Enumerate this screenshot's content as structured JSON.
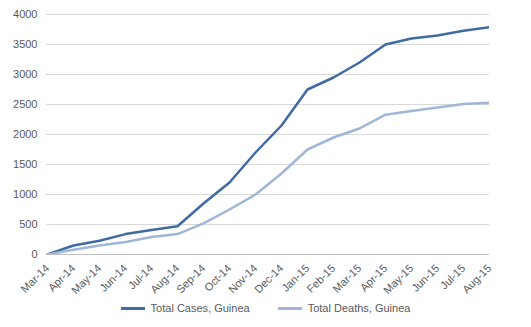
{
  "chart_data": {
    "type": "line",
    "x": [
      "Mar-14",
      "Apr-14",
      "May-14",
      "Jun-14",
      "Jul-14",
      "Aug-14",
      "Sep-14",
      "Oct-14",
      "Nov-14",
      "Dec-14",
      "Jan-15",
      "Feb-15",
      "Mar-15",
      "Apr-15",
      "May-15",
      "Jun-15",
      "Jul-15",
      "Aug-15"
    ],
    "series": [
      {
        "name": "Total Cases, Guinea",
        "color": "#3f6aa3",
        "values": [
          0,
          150,
          230,
          340,
          410,
          470,
          850,
          1200,
          1700,
          2150,
          2750,
          2950,
          3200,
          3500,
          3600,
          3650,
          3730,
          3790
        ]
      },
      {
        "name": "Total Deaths, Guinea",
        "color": "#9fb6d8",
        "values": [
          0,
          80,
          150,
          210,
          290,
          340,
          520,
          750,
          1000,
          1350,
          1750,
          1950,
          2100,
          2330,
          2390,
          2450,
          2510,
          2530
        ]
      }
    ],
    "ylim": [
      0,
      4000
    ],
    "yticks": [
      0,
      500,
      1000,
      1500,
      2000,
      2500,
      3000,
      3500,
      4000
    ],
    "grid": true,
    "legend": "bottom"
  }
}
